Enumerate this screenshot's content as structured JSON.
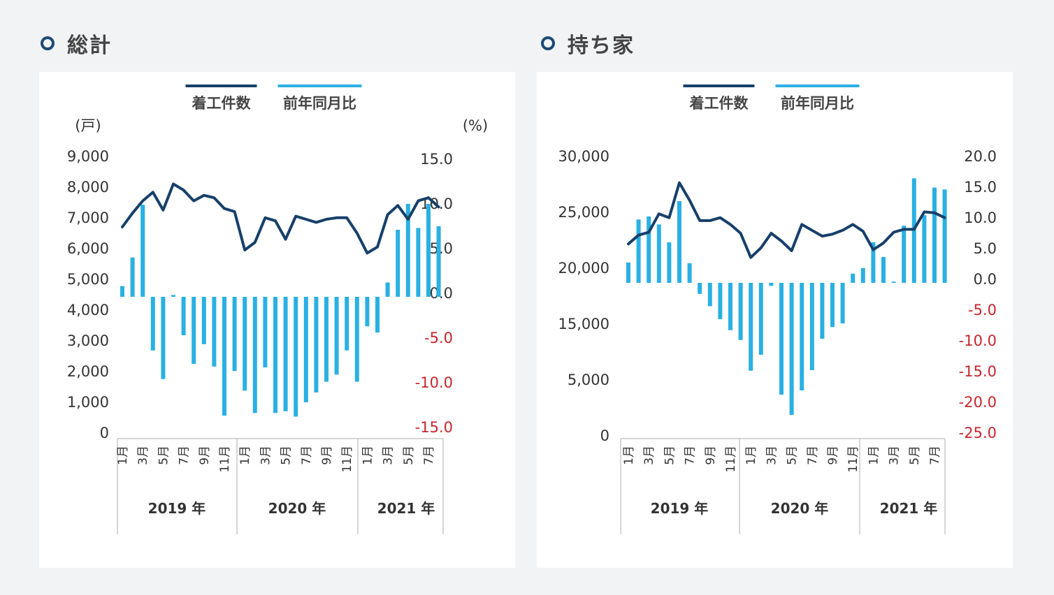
{
  "sections": [
    {
      "title": "総計"
    },
    {
      "title": "持ち家"
    }
  ],
  "chart_data": [
    {
      "type": "bar+line",
      "legend": [
        "着工件数",
        "前年同月比"
      ],
      "legend_position": "top-center",
      "left_axis_unit": "(戸)",
      "right_axis_unit": "(%)",
      "left_ticks": [
        "9,000",
        "8,000",
        "7,000",
        "6,000",
        "5,000",
        "4,000",
        "3,000",
        "2,000",
        "1,000",
        "0"
      ],
      "right_ticks": [
        "15.0",
        "10.0",
        "5.0",
        "0.0",
        "-5.0",
        "-10.0",
        "-15.0"
      ],
      "left_range": [
        0,
        9000
      ],
      "right_range": [
        -15,
        15
      ],
      "x_month_labels": [
        "1月",
        "",
        "3月",
        "",
        "5月",
        "",
        "7月",
        "",
        "9月",
        "",
        "11月",
        "",
        "1月",
        "",
        "3月",
        "",
        "5月",
        "",
        "7月",
        "",
        "9月",
        "",
        "11月",
        "",
        "1月",
        "",
        "3月",
        "",
        "5月",
        "",
        "7月",
        ""
      ],
      "years": [
        {
          "label": "2019 年",
          "count": 12
        },
        {
          "label": "2020 年",
          "count": 12
        },
        {
          "label": "2021 年",
          "count": 8
        }
      ],
      "series": [
        {
          "name": "着工件数",
          "type": "line",
          "axis": "left",
          "values": [
            6750,
            7200,
            7600,
            7880,
            7300,
            8150,
            7950,
            7600,
            7780,
            7700,
            7350,
            7250,
            6000,
            6250,
            7050,
            6950,
            6350,
            7100,
            7000,
            6900,
            7000,
            7050,
            7050,
            6550,
            5900,
            6100,
            7150,
            7450,
            7000,
            7600,
            7700,
            7400
          ]
        },
        {
          "name": "前年同月比",
          "type": "bar",
          "axis": "right",
          "values": [
            1.2,
            4.4,
            10.3,
            -6.0,
            -9.2,
            0.2,
            -4.3,
            -7.5,
            -5.3,
            -7.8,
            -13.3,
            -8.3,
            -10.5,
            -13.0,
            -7.9,
            -13.0,
            -12.8,
            -13.4,
            -11.8,
            -10.7,
            -9.5,
            -8.7,
            -6.0,
            -9.5,
            -3.3,
            -4.0,
            1.6,
            7.5,
            10.4,
            7.7,
            10.4,
            7.9
          ]
        }
      ]
    },
    {
      "type": "bar+line",
      "legend": [
        "着工件数",
        "前年同月比"
      ],
      "legend_position": "top-center",
      "left_ticks": [
        "30,000",
        "25,000",
        "20,000",
        "15,000",
        "5,000",
        "0"
      ],
      "right_ticks": [
        "20.0",
        "15.0",
        "10.0",
        "5.0",
        "0.0",
        "-5.0",
        "-10.0",
        "-15.0",
        "-20.0",
        "-25.0"
      ],
      "right_range": [
        -25,
        20
      ],
      "x_month_labels": [
        "1月",
        "",
        "3月",
        "",
        "5月",
        "",
        "7月",
        "",
        "9月",
        "",
        "11月",
        "",
        "1月",
        "",
        "3月",
        "",
        "5月",
        "",
        "7月",
        "",
        "9月",
        "",
        "11月",
        "",
        "1月",
        "",
        "3月",
        "",
        "5月",
        "",
        "7月",
        ""
      ],
      "years": [
        {
          "label": "2019 年",
          "count": 12
        },
        {
          "label": "2020 年",
          "count": 12
        },
        {
          "label": "2021 年",
          "count": 8
        }
      ],
      "series": [
        {
          "name": "着工件数",
          "type": "line",
          "axis": "left",
          "values": [
            22500,
            23400,
            23700,
            25600,
            25200,
            28800,
            27000,
            24900,
            24900,
            25200,
            24500,
            23600,
            21100,
            22100,
            23600,
            22800,
            21800,
            24500,
            23900,
            23300,
            23500,
            23900,
            24500,
            23800,
            21900,
            22600,
            23700,
            24000,
            24000,
            25800,
            25700,
            25200
          ]
        },
        {
          "name": "前年同月比",
          "type": "bar",
          "axis": "right",
          "values": [
            3.3,
            10.3,
            10.8,
            9.5,
            6.6,
            13.3,
            3.2,
            -1.8,
            -3.8,
            -5.9,
            -7.7,
            -9.3,
            -14.3,
            -11.7,
            -0.5,
            -18.2,
            -21.5,
            -17.5,
            -14.2,
            -9.1,
            -7.2,
            -6.6,
            1.5,
            2.4,
            6.6,
            4.2,
            0.2,
            9.3,
            17.0,
            11.0,
            15.5,
            15.2
          ]
        }
      ]
    }
  ]
}
